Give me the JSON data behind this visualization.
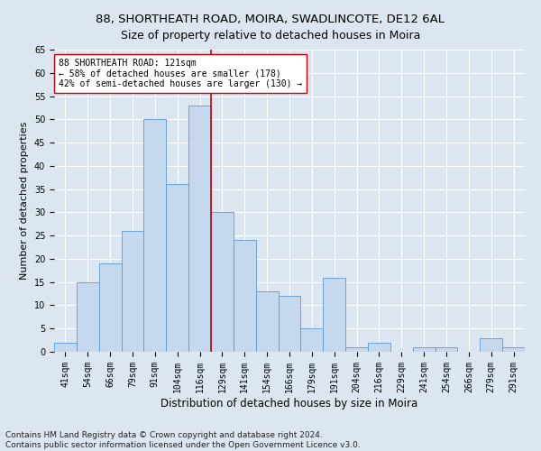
{
  "title": "88, SHORTHEATH ROAD, MOIRA, SWADLINCOTE, DE12 6AL",
  "subtitle": "Size of property relative to detached houses in Moira",
  "xlabel": "Distribution of detached houses by size in Moira",
  "ylabel": "Number of detached properties",
  "categories": [
    "41sqm",
    "54sqm",
    "66sqm",
    "79sqm",
    "91sqm",
    "104sqm",
    "116sqm",
    "129sqm",
    "141sqm",
    "154sqm",
    "166sqm",
    "179sqm",
    "191sqm",
    "204sqm",
    "216sqm",
    "229sqm",
    "241sqm",
    "254sqm",
    "266sqm",
    "279sqm",
    "291sqm"
  ],
  "values": [
    2,
    15,
    19,
    26,
    50,
    36,
    53,
    30,
    24,
    13,
    12,
    5,
    16,
    1,
    2,
    0,
    1,
    1,
    0,
    3,
    1
  ],
  "bar_color": "#c5d8ed",
  "bar_edge_color": "#5b9bd5",
  "highlight_index": 6,
  "vline_color": "#cc0000",
  "ylim": [
    0,
    65
  ],
  "yticks": [
    0,
    5,
    10,
    15,
    20,
    25,
    30,
    35,
    40,
    45,
    50,
    55,
    60,
    65
  ],
  "annotation_line1": "88 SHORTHEATH ROAD: 121sqm",
  "annotation_line2": "← 58% of detached houses are smaller (178)",
  "annotation_line3": "42% of semi-detached houses are larger (130) →",
  "annotation_box_color": "#ffffff",
  "annotation_box_edge": "#cc0000",
  "footer_line1": "Contains HM Land Registry data © Crown copyright and database right 2024.",
  "footer_line2": "Contains public sector information licensed under the Open Government Licence v3.0.",
  "background_color": "#dce6f0",
  "plot_background": "#dce6f0",
  "title_fontsize": 9.5,
  "subtitle_fontsize": 9,
  "ylabel_fontsize": 8,
  "xlabel_fontsize": 8.5,
  "tick_fontsize": 7,
  "annotation_fontsize": 7,
  "footer_fontsize": 6.5
}
